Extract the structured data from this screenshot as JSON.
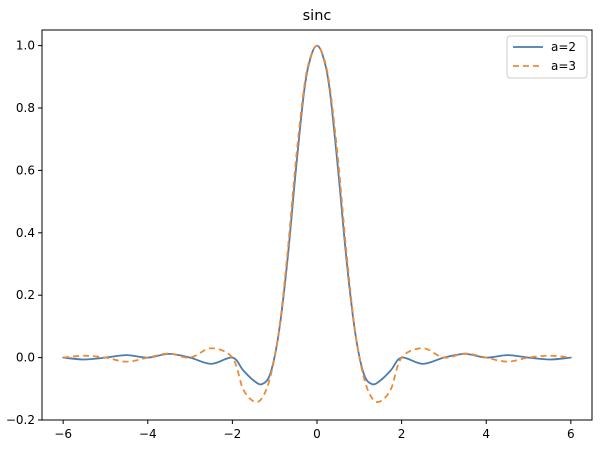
{
  "chart_data": {
    "type": "line",
    "title": "sinc",
    "xlabel": "",
    "ylabel": "",
    "xlim": [
      -6.5,
      6.5
    ],
    "ylim": [
      -0.2,
      1.05
    ],
    "x_ticks": [
      -6,
      -4,
      -2,
      0,
      2,
      4,
      6
    ],
    "x_tick_labels": [
      "−6",
      "−4",
      "−2",
      "0",
      "2",
      "4",
      "6"
    ],
    "y_ticks": [
      -0.2,
      0.0,
      0.2,
      0.4,
      0.6,
      0.8,
      1.0
    ],
    "y_tick_labels": [
      "−0.2",
      "0.0",
      "0.2",
      "0.4",
      "0.6",
      "0.8",
      "1.0"
    ],
    "grid": false,
    "legend_position": "top-right",
    "x": [
      -6.0,
      -5.5,
      -5.0,
      -4.5,
      -4.0,
      -3.5,
      -3.0,
      -2.5,
      -2.0,
      -1.75,
      -1.5,
      -1.3,
      -1.1,
      -0.9,
      -0.7,
      -0.5,
      -0.3,
      -0.15,
      0.0,
      0.15,
      0.3,
      0.5,
      0.7,
      0.9,
      1.1,
      1.3,
      1.5,
      1.75,
      2.0,
      2.5,
      3.0,
      3.5,
      4.0,
      4.5,
      5.0,
      5.5,
      6.0
    ],
    "series": [
      {
        "name": "a=2",
        "color": "#4c7cae",
        "dash": "solid",
        "values": [
          0.0,
          -0.006,
          0.0,
          0.008,
          0.0,
          0.012,
          0.0,
          -0.02,
          0.0,
          -0.04,
          -0.073,
          -0.085,
          -0.05,
          0.082,
          0.31,
          0.6,
          0.858,
          0.962,
          1.0,
          0.962,
          0.858,
          0.6,
          0.31,
          0.082,
          -0.05,
          -0.085,
          -0.073,
          -0.04,
          0.0,
          -0.02,
          0.0,
          0.012,
          0.0,
          0.008,
          0.0,
          -0.006,
          0.0
        ]
      },
      {
        "name": "a=3",
        "color": "#ee8a33",
        "dash": "dashed",
        "values": [
          0.0,
          0.006,
          0.0,
          -0.013,
          0.0,
          0.013,
          0.0,
          0.03,
          0.0,
          -0.1,
          -0.14,
          -0.13,
          -0.06,
          0.085,
          0.33,
          0.63,
          0.87,
          0.965,
          1.0,
          0.965,
          0.87,
          0.63,
          0.33,
          0.085,
          -0.06,
          -0.13,
          -0.14,
          -0.1,
          0.0,
          0.03,
          0.0,
          0.013,
          0.0,
          -0.013,
          0.0,
          0.006,
          0.0
        ]
      }
    ]
  }
}
